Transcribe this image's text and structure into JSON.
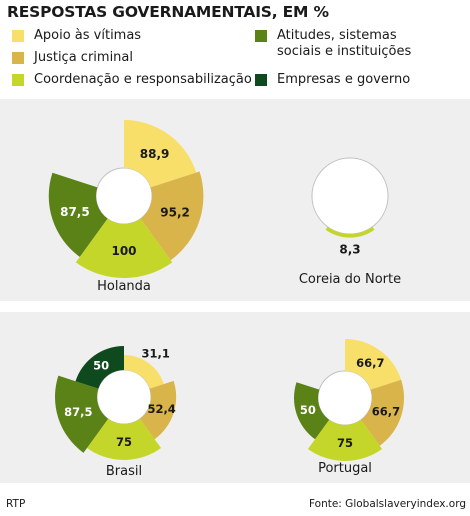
{
  "title": "RESPOSTAS GOVERNAMENTAIS, EM %",
  "legend": [
    {
      "label": "Apoio às vítimas",
      "color": "#f7df6a"
    },
    {
      "label": "Justiça criminal",
      "color": "#d9b44a"
    },
    {
      "label": "Coordenação e responsabilização",
      "color": "#c5d62a"
    },
    {
      "label": "Atitudes, sistemas sociais e instituições",
      "color": "#5a8217"
    },
    {
      "label": "Empresas e governo",
      "color": "#0f4a1f"
    }
  ],
  "chart_data": [
    {
      "type": "polar-area",
      "title": "Holanda",
      "max": 100,
      "series": [
        "Apoio às vítimas",
        "Justiça criminal",
        "Coordenação e responsabilização",
        "Atitudes, sistemas sociais e instituições",
        "Empresas e governo"
      ],
      "values": [
        88.9,
        95.2,
        100,
        87.5,
        0
      ],
      "labels": [
        "88,9",
        "95,2",
        "100",
        "87,5",
        ""
      ]
    },
    {
      "type": "polar-area",
      "title": "Coreia do Norte",
      "max": 100,
      "series": [
        "Apoio às vítimas",
        "Justiça criminal",
        "Coordenação e responsabilização",
        "Atitudes, sistemas sociais e instituições",
        "Empresas e governo"
      ],
      "values": [
        0,
        0,
        8.3,
        0,
        0
      ],
      "labels": [
        "",
        "",
        "8,3",
        "",
        ""
      ]
    },
    {
      "type": "polar-area",
      "title": "Brasil",
      "max": 100,
      "series": [
        "Apoio às vítimas",
        "Justiça criminal",
        "Coordenação e responsabilização",
        "Atitudes, sistemas sociais e instituições",
        "Empresas e governo"
      ],
      "values": [
        31.1,
        52.4,
        75,
        87.5,
        50
      ],
      "labels": [
        "31,1",
        "52,4",
        "75",
        "87,5",
        "50"
      ]
    },
    {
      "type": "polar-area",
      "title": "Portugal",
      "max": 100,
      "series": [
        "Apoio às vítimas",
        "Justiça criminal",
        "Coordenação e responsabilização",
        "Atitudes, sistemas sociais e instituições",
        "Empresas e governo"
      ],
      "values": [
        66.7,
        66.7,
        75,
        50,
        0
      ],
      "labels": [
        "66,7",
        "66,7",
        "75",
        "50",
        ""
      ]
    }
  ],
  "footer": {
    "left": "RTP",
    "right": "Fonte: Globalslaveryindex.org"
  }
}
